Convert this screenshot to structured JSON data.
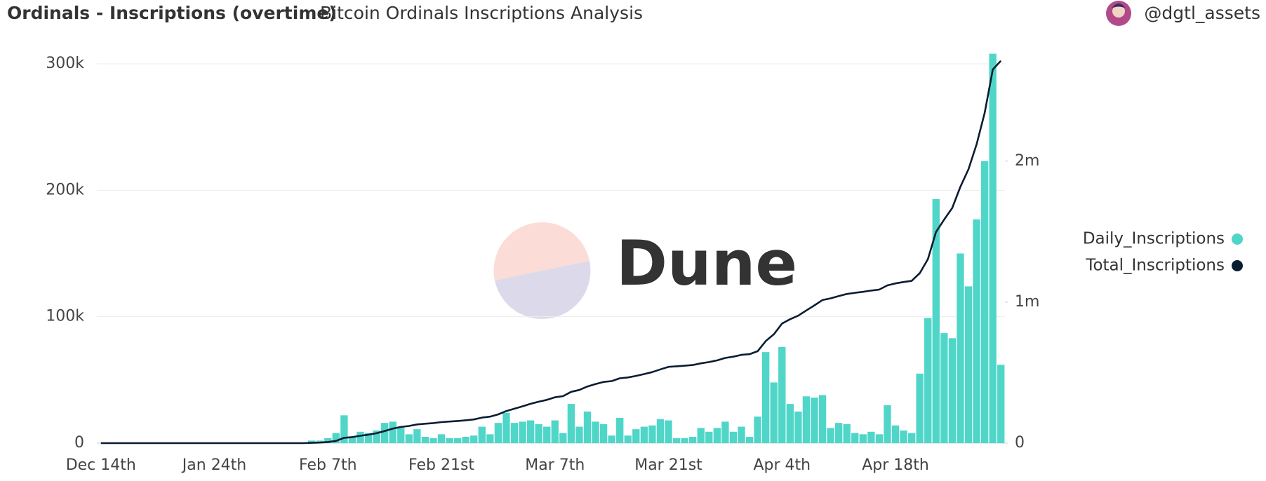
{
  "header": {
    "title": "Ordinals - Inscriptions (overtime)",
    "subtitle": "Bitcoin Ordinals Inscriptions Analysis",
    "author": "@dgtl_assets"
  },
  "watermark": "Dune",
  "chart_data": {
    "type": "bar-line",
    "categories": [
      "Dec 14th",
      null,
      null,
      null,
      null,
      null,
      null,
      null,
      null,
      null,
      null,
      null,
      null,
      null,
      "Jan 24th",
      null,
      null,
      null,
      null,
      null,
      null,
      null,
      null,
      null,
      null,
      null,
      null,
      null,
      "Feb 7th",
      null,
      null,
      null,
      null,
      null,
      null,
      null,
      null,
      null,
      null,
      null,
      null,
      null,
      "Feb 21st",
      null,
      null,
      null,
      null,
      null,
      null,
      null,
      null,
      null,
      null,
      null,
      null,
      null,
      "Mar 7th",
      null,
      null,
      null,
      null,
      null,
      null,
      null,
      null,
      null,
      null,
      null,
      null,
      null,
      "Mar 21st",
      null,
      null,
      null,
      null,
      null,
      null,
      null,
      null,
      null,
      null,
      null,
      null,
      null,
      "Apr 4th",
      null,
      null,
      null,
      null,
      null,
      null,
      null,
      null,
      null,
      null,
      null,
      null,
      null,
      "Apr 18th",
      null,
      null,
      null,
      null,
      null,
      null,
      null,
      null,
      null,
      null,
      null,
      null,
      null
    ],
    "series": [
      {
        "name": "Daily_Inscriptions",
        "color": "#4fd6c8",
        "kind": "bar",
        "values": [
          0,
          0,
          0,
          0,
          0,
          0,
          0,
          0,
          0,
          0,
          0,
          0,
          0,
          0,
          0,
          0,
          0,
          0,
          0,
          0,
          0,
          0,
          0,
          0,
          0,
          0,
          2000,
          2000,
          4000,
          8000,
          22000,
          5000,
          9000,
          8000,
          10000,
          16000,
          17000,
          12000,
          7000,
          11000,
          5000,
          4000,
          7000,
          4000,
          4000,
          5000,
          6000,
          13000,
          7000,
          16000,
          24000,
          16000,
          17000,
          18000,
          15000,
          13000,
          18000,
          8000,
          31000,
          13000,
          25000,
          17000,
          15000,
          6000,
          20000,
          6000,
          11000,
          13000,
          14000,
          19000,
          18000,
          4000,
          4000,
          5000,
          12000,
          9000,
          12000,
          17000,
          9000,
          13000,
          5000,
          21000,
          72000,
          48000,
          76000,
          31000,
          25000,
          37000,
          36000,
          38000,
          12000,
          16000,
          15000,
          8000,
          7000,
          9000,
          7000,
          30000,
          14000,
          10000,
          8000,
          55000,
          99000,
          193000,
          87000,
          83000,
          150000,
          124000,
          177000,
          223000,
          308000,
          62000
        ]
      },
      {
        "name": "Total_Inscriptions",
        "color": "#0b1d33",
        "kind": "line",
        "axis": "y2",
        "values": [
          0,
          0,
          0,
          0,
          0,
          0,
          0,
          0,
          0,
          0,
          0,
          0,
          0,
          0,
          0,
          0,
          0,
          0,
          0,
          0,
          0,
          0,
          0,
          0,
          0,
          0,
          2000,
          4000,
          8000,
          16000,
          38000,
          43000,
          52000,
          60000,
          70000,
          86000,
          103000,
          115000,
          122000,
          133000,
          138000,
          142000,
          149000,
          153000,
          157000,
          162000,
          168000,
          181000,
          188000,
          204000,
          228000,
          244000,
          261000,
          279000,
          294000,
          307000,
          325000,
          333000,
          364000,
          377000,
          402000,
          419000,
          434000,
          440000,
          460000,
          466000,
          477000,
          490000,
          504000,
          523000,
          541000,
          545000,
          549000,
          554000,
          566000,
          575000,
          587000,
          604000,
          613000,
          626000,
          631000,
          652000,
          724000,
          772000,
          848000,
          879000,
          904000,
          941000,
          977000,
          1015000,
          1027000,
          1043000,
          1058000,
          1066000,
          1073000,
          1082000,
          1089000,
          1119000,
          1133000,
          1143000,
          1151000,
          1206000,
          1305000,
          1498000,
          1585000,
          1668000,
          1818000,
          1942000,
          2119000,
          2342000,
          2650000,
          2712000
        ]
      }
    ],
    "ylim": [
      0,
      310000
    ],
    "yticks": [
      0,
      {
        "value": 100000,
        "label": "100k"
      },
      {
        "value": 200000,
        "label": "200k"
      },
      {
        "value": 300000,
        "label": "300k"
      }
    ],
    "y2lim": [
      0,
      2780000
    ],
    "y2ticks": [
      0,
      {
        "value": 1000000,
        "label": "1m"
      },
      {
        "value": 2000000,
        "label": "2m"
      }
    ],
    "grid": true,
    "legend": "right"
  }
}
